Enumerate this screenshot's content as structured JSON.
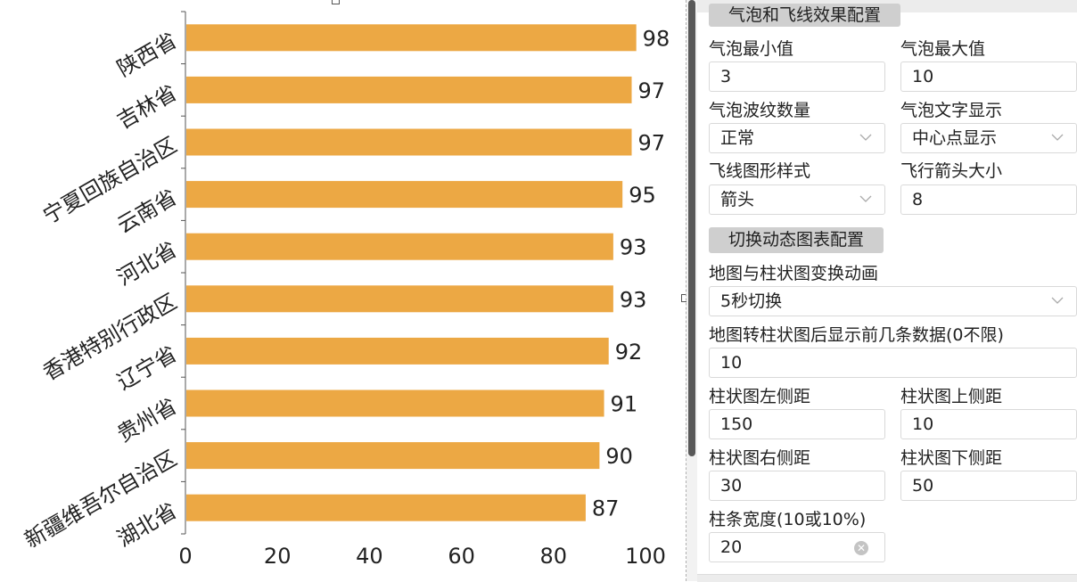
{
  "chart_data": {
    "type": "bar",
    "orientation": "horizontal",
    "categories": [
      "陕西省",
      "吉林省",
      "宁夏回族自治区",
      "云南省",
      "河北省",
      "香港特别行政区",
      "辽宁省",
      "贵州省",
      "新疆维吾尔自治区",
      "湖北省"
    ],
    "values": [
      98,
      97,
      97,
      95,
      93,
      93,
      92,
      91,
      90,
      87
    ],
    "x_ticks": [
      "0",
      "20",
      "40",
      "60",
      "80",
      "100"
    ],
    "xlim": [
      0,
      100
    ],
    "bar_color": "#eca844",
    "grid": false,
    "title": "",
    "xlabel": "",
    "ylabel": ""
  },
  "panel": {
    "section1": {
      "title": "气泡和飞线效果配置"
    },
    "bubble_min": {
      "label": "气泡最小值",
      "value": "3"
    },
    "bubble_max": {
      "label": "气泡最大值",
      "value": "10"
    },
    "ripple_count": {
      "label": "气泡波纹数量",
      "value": "正常"
    },
    "text_display": {
      "label": "气泡文字显示",
      "value": "中心点显示"
    },
    "flyline_style": {
      "label": "飞线图形样式",
      "value": "箭头"
    },
    "arrow_size": {
      "label": "飞行箭头大小",
      "value": "8"
    },
    "section2": {
      "title": "切换动态图表配置"
    },
    "transition": {
      "label": "地图与柱状图变换动画",
      "value": "5秒切换"
    },
    "top_n": {
      "label": "地图转柱状图后显示前几条数据(0不限)",
      "value": "10"
    },
    "bar_left": {
      "label": "柱状图左侧距",
      "value": "150"
    },
    "bar_top": {
      "label": "柱状图上侧距",
      "value": "10"
    },
    "bar_right": {
      "label": "柱状图右侧距",
      "value": "30"
    },
    "bar_bottom": {
      "label": "柱状图下侧距",
      "value": "50"
    },
    "bar_width": {
      "label": "柱条宽度(10或10%)",
      "value": "20"
    }
  },
  "icons": {
    "dropdown": "chevron-down-icon",
    "clear": "clear-icon"
  }
}
